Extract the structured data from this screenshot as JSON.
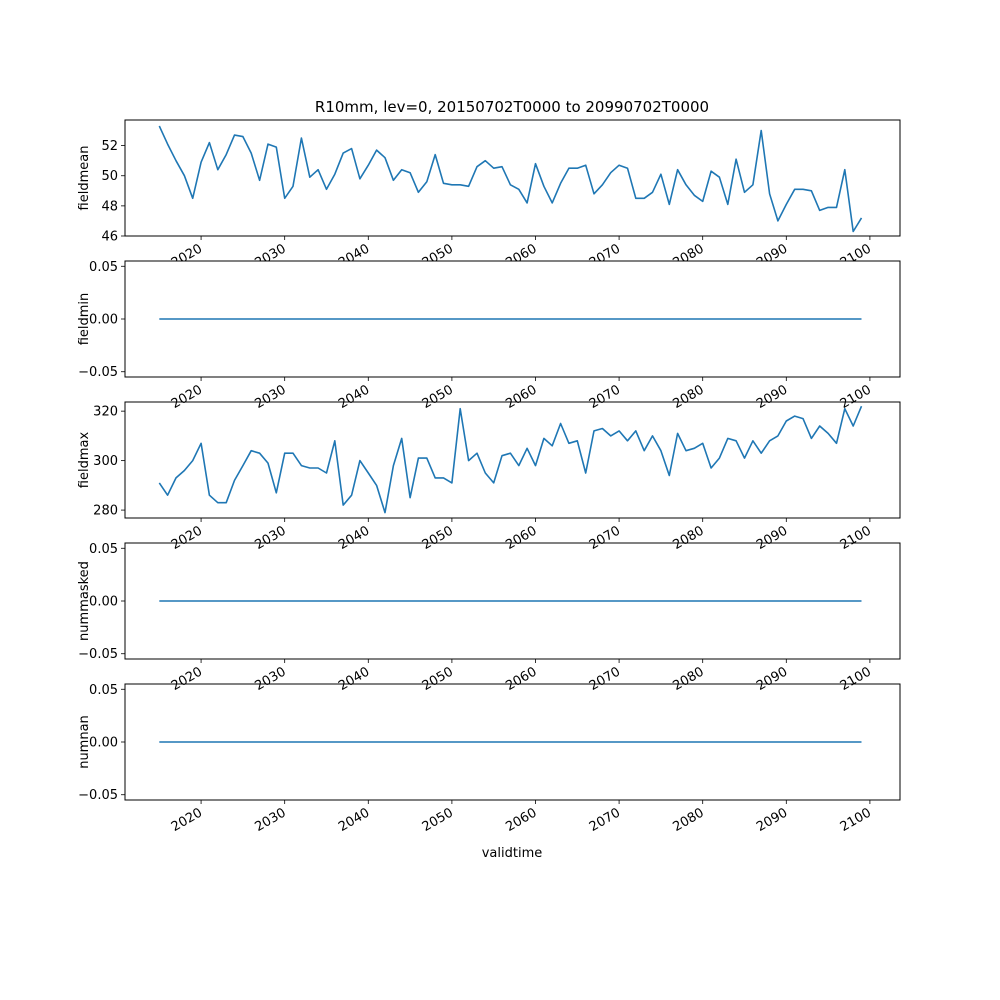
{
  "title": "R10mm, lev=0, 20150702T0000 to 20990702T0000",
  "xlabel": "validtime",
  "x_tick_labels": [
    "2020",
    "2030",
    "2040",
    "2050",
    "2060",
    "2070",
    "2080",
    "2090",
    "2100"
  ],
  "series_color": "#1f77b4",
  "chart_data": [
    {
      "type": "line",
      "ylabel": "fieldmean",
      "ylim": [
        46,
        53.7
      ],
      "y_ticks": [
        46,
        48,
        50,
        52
      ],
      "y_tick_labels": [
        "46",
        "48",
        "50",
        "52"
      ],
      "x": [
        2015,
        2016,
        2017,
        2018,
        2019,
        2020,
        2021,
        2022,
        2023,
        2024,
        2025,
        2026,
        2027,
        2028,
        2029,
        2030,
        2031,
        2032,
        2033,
        2034,
        2035,
        2036,
        2037,
        2038,
        2039,
        2040,
        2041,
        2042,
        2043,
        2044,
        2045,
        2046,
        2047,
        2048,
        2049,
        2050,
        2051,
        2052,
        2053,
        2054,
        2055,
        2056,
        2057,
        2058,
        2059,
        2060,
        2061,
        2062,
        2063,
        2064,
        2065,
        2066,
        2067,
        2068,
        2069,
        2070,
        2071,
        2072,
        2073,
        2074,
        2075,
        2076,
        2077,
        2078,
        2079,
        2080,
        2081,
        2082,
        2083,
        2084,
        2085,
        2086,
        2087,
        2088,
        2089,
        2090,
        2091,
        2092,
        2093,
        2094,
        2095,
        2096,
        2097,
        2098,
        2099
      ],
      "values": [
        53.3,
        52.1,
        51.0,
        50.0,
        48.5,
        50.9,
        52.2,
        50.4,
        51.4,
        52.7,
        52.6,
        51.5,
        49.7,
        52.1,
        51.9,
        48.5,
        49.3,
        52.5,
        49.9,
        50.4,
        49.1,
        50.1,
        51.5,
        51.8,
        49.8,
        50.7,
        51.7,
        51.2,
        49.7,
        50.4,
        50.2,
        48.9,
        49.6,
        51.4,
        49.5,
        49.4,
        49.4,
        49.3,
        50.6,
        51.0,
        50.5,
        50.6,
        49.4,
        49.1,
        48.2,
        50.8,
        49.3,
        48.2,
        49.5,
        50.5,
        50.5,
        50.7,
        48.8,
        49.4,
        50.2,
        50.7,
        50.5,
        48.5,
        48.5,
        48.9,
        50.1,
        48.1,
        50.4,
        49.4,
        48.7,
        48.3,
        50.3,
        49.9,
        48.1,
        51.1,
        48.9,
        49.4,
        53.0,
        48.8,
        47.0,
        48.1,
        49.1,
        49.1,
        49.0,
        47.7,
        47.9,
        47.9,
        50.4,
        46.3,
        47.2
      ]
    },
    {
      "type": "line",
      "ylabel": "fieldmin",
      "ylim": [
        -0.055,
        0.055
      ],
      "y_ticks": [
        -0.05,
        0,
        0.05
      ],
      "y_tick_labels": [
        "−0.05",
        "0.00",
        "0.05"
      ],
      "x": [
        2015,
        2099
      ],
      "values": [
        0,
        0
      ]
    },
    {
      "type": "line",
      "ylabel": "fieldmax",
      "ylim": [
        276.8,
        323.7
      ],
      "y_ticks": [
        280,
        300,
        320
      ],
      "y_tick_labels": [
        "280",
        "300",
        "320"
      ],
      "x": [
        2015,
        2016,
        2017,
        2018,
        2019,
        2020,
        2021,
        2022,
        2023,
        2024,
        2025,
        2026,
        2027,
        2028,
        2029,
        2030,
        2031,
        2032,
        2033,
        2034,
        2035,
        2036,
        2037,
        2038,
        2039,
        2040,
        2041,
        2042,
        2043,
        2044,
        2045,
        2046,
        2047,
        2048,
        2049,
        2050,
        2051,
        2052,
        2053,
        2054,
        2055,
        2056,
        2057,
        2058,
        2059,
        2060,
        2061,
        2062,
        2063,
        2064,
        2065,
        2066,
        2067,
        2068,
        2069,
        2070,
        2071,
        2072,
        2073,
        2074,
        2075,
        2076,
        2077,
        2078,
        2079,
        2080,
        2081,
        2082,
        2083,
        2084,
        2085,
        2086,
        2087,
        2088,
        2089,
        2090,
        2091,
        2092,
        2093,
        2094,
        2095,
        2096,
        2097,
        2098,
        2099
      ],
      "values": [
        291,
        286,
        293,
        296,
        300,
        307,
        286,
        283,
        283,
        292,
        298,
        304,
        303,
        299,
        287,
        303,
        303,
        298,
        297,
        297,
        295,
        308,
        282,
        286,
        300,
        295,
        290,
        279,
        298,
        309,
        285,
        301,
        301,
        293,
        293,
        291,
        321,
        300,
        303,
        295,
        291,
        302,
        303,
        298,
        305,
        298,
        309,
        306,
        315,
        307,
        308,
        295,
        312,
        313,
        310,
        312,
        308,
        312,
        304,
        310,
        304,
        294,
        311,
        304,
        305,
        307,
        297,
        301,
        309,
        308,
        301,
        308,
        303,
        308,
        310,
        316,
        318,
        317,
        309,
        314,
        311,
        307,
        321,
        314,
        322
      ]
    },
    {
      "type": "line",
      "ylabel": "nummasked",
      "ylim": [
        -0.055,
        0.055
      ],
      "y_ticks": [
        -0.05,
        0,
        0.05
      ],
      "y_tick_labels": [
        "−0.05",
        "0.00",
        "0.05"
      ],
      "x": [
        2015,
        2099
      ],
      "values": [
        0,
        0
      ]
    },
    {
      "type": "line",
      "ylabel": "numnan",
      "ylim": [
        -0.055,
        0.055
      ],
      "y_ticks": [
        -0.05,
        0,
        0.05
      ],
      "y_tick_labels": [
        "−0.05",
        "0.00",
        "0.05"
      ],
      "x": [
        2015,
        2099
      ],
      "values": [
        0,
        0
      ]
    }
  ]
}
